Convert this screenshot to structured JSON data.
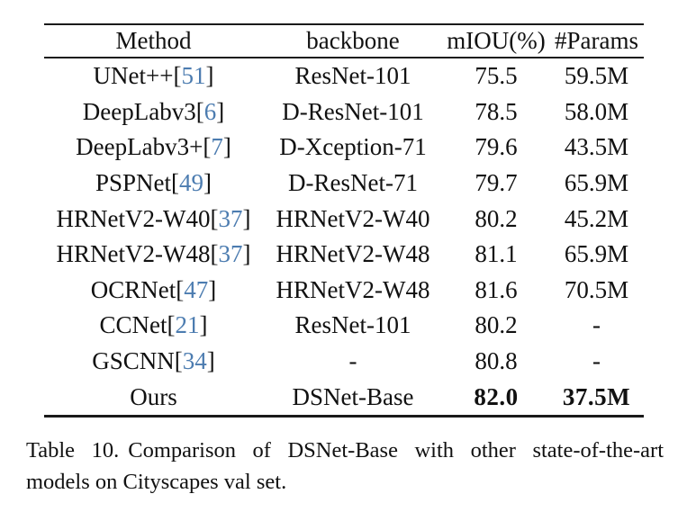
{
  "table": {
    "columns": [
      "Method",
      "backbone",
      "mIOU(%)",
      "#Params"
    ],
    "rows": [
      {
        "method": "UNet++",
        "cite": "51",
        "backbone": "ResNet-101",
        "miou": "75.5",
        "params": "59.5M",
        "bold": false
      },
      {
        "method": "DeepLabv3",
        "cite": "6",
        "backbone": "D-ResNet-101",
        "miou": "78.5",
        "params": "58.0M",
        "bold": false
      },
      {
        "method": "DeepLabv3+",
        "cite": "7",
        "backbone": "D-Xception-71",
        "miou": "79.6",
        "params": "43.5M",
        "bold": false
      },
      {
        "method": "PSPNet",
        "cite": "49",
        "backbone": "D-ResNet-71",
        "miou": "79.7",
        "params": "65.9M",
        "bold": false
      },
      {
        "method": "HRNetV2-W40",
        "cite": "37",
        "backbone": "HRNetV2-W40",
        "miou": "80.2",
        "params": "45.2M",
        "bold": false
      },
      {
        "method": "HRNetV2-W48",
        "cite": "37",
        "backbone": "HRNetV2-W48",
        "miou": "81.1",
        "params": "65.9M",
        "bold": false
      },
      {
        "method": "OCRNet",
        "cite": "47",
        "backbone": "HRNetV2-W48",
        "miou": "81.6",
        "params": "70.5M",
        "bold": false
      },
      {
        "method": "CCNet",
        "cite": "21",
        "backbone": "ResNet-101",
        "miou": "80.2",
        "params": "-",
        "bold": false
      },
      {
        "method": "GSCNN",
        "cite": "34",
        "backbone": "-",
        "miou": "80.8",
        "params": "-",
        "bold": false
      },
      {
        "method": "Ours",
        "cite": null,
        "backbone": "DSNet-Base",
        "miou": "82.0",
        "params": "37.5M",
        "bold": true
      }
    ]
  },
  "caption": {
    "label": "Table 10.",
    "text": "Comparison of DSNet-Base with other state-of-the-art models on Cityscapes val set."
  },
  "colors": {
    "citation_link": "#4c7cb0",
    "text": "#111111",
    "rule": "#1a1a1a"
  }
}
